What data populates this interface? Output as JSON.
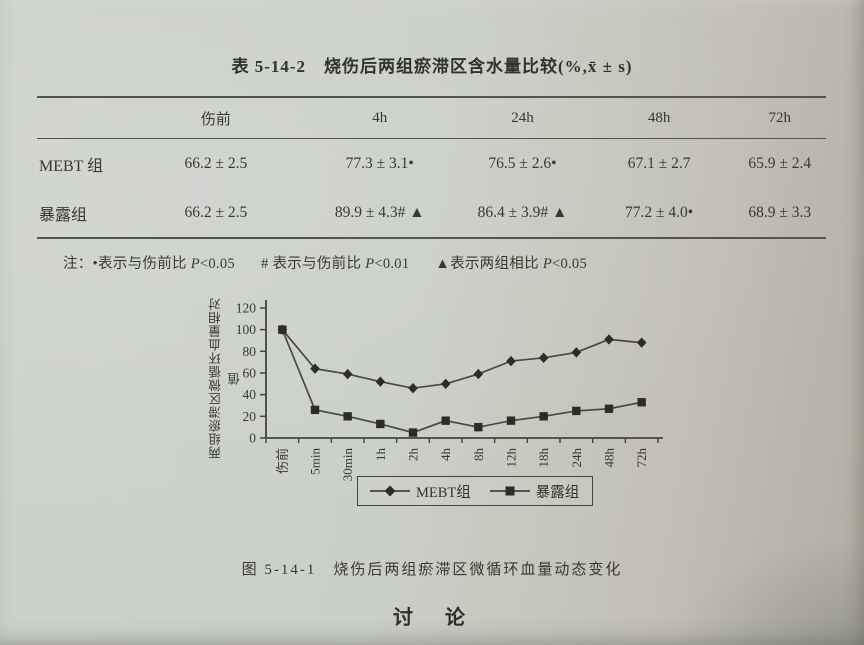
{
  "page": {
    "table_caption": "表 5-14-2　烧伤后两组瘀滞区含水量比较(%,x̄ ± s)",
    "figure_caption": "图  5-14-1　烧伤后两组瘀滞区微循环血量动态变化",
    "section_heading": "讨　论"
  },
  "table": {
    "headers": [
      "",
      "伤前",
      "4h",
      "24h",
      "48h",
      "72h"
    ],
    "rows": [
      {
        "label": "MEBT 组",
        "cells": [
          "66.2 ± 2.5",
          "77.3 ± 3.1•",
          "76.5 ± 2.6•",
          "67.1 ± 2.7",
          "65.9 ± 2.4"
        ]
      },
      {
        "label": "暴露组",
        "cells": [
          "66.2 ± 2.5",
          "89.9 ± 4.3# ▲",
          "86.4 ± 3.9# ▲",
          "77.2 ± 4.0•",
          "68.9 ± 3.3"
        ]
      }
    ]
  },
  "note": {
    "prefix": "注：",
    "items": [
      {
        "symbol": "•",
        "text": "表示与伤前比 ",
        "p": "P",
        "value": "<0.05"
      },
      {
        "symbol": "# ",
        "text": "表示与伤前比 ",
        "p": "P",
        "value": "<0.01"
      },
      {
        "symbol": "▲",
        "text": "表示两组相比 ",
        "p": "P",
        "value": "<0.05"
      }
    ]
  },
  "chart_data": {
    "type": "line",
    "title": "",
    "categories": [
      "伤前",
      "5min",
      "30min",
      "1h",
      "2h",
      "4h",
      "8h",
      "12h",
      "18h",
      "24h",
      "48h",
      "72h"
    ],
    "series": [
      {
        "name": "MEBT组",
        "marker": "diamond",
        "values": [
          100,
          64,
          59,
          52,
          46,
          50,
          59,
          71,
          74,
          79,
          91,
          88
        ]
      },
      {
        "name": "暴露组",
        "marker": "square",
        "values": [
          100,
          26,
          20,
          13,
          5,
          16,
          10,
          16,
          20,
          25,
          27,
          33
        ]
      }
    ],
    "xlabel": "",
    "ylabel": "两组瘀滞区微循环血量相对值",
    "ylim": [
      0,
      120
    ],
    "yticks": [
      0,
      20,
      40,
      60,
      80,
      100,
      120
    ],
    "grid": false,
    "legend_position": "bottom",
    "line_color": "#4a483f",
    "marker_color": "#2d2c26",
    "axis_color": "#45443c",
    "tick_label_color": "#3a392f"
  }
}
